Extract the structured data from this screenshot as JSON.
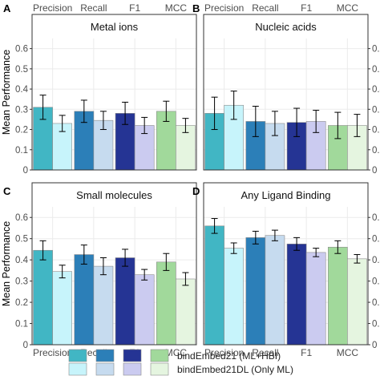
{
  "chart_data": {
    "type": "bar",
    "ylabel": "Mean Performance",
    "ylim": [
      0,
      0.65
    ],
    "yticks": [
      0,
      0.1,
      0.2,
      0.3,
      0.4,
      0.5,
      0.6
    ],
    "ytick_labels": [
      "0",
      "0.1",
      "0.2",
      "0.3",
      "0.4",
      "0.5",
      "0.6"
    ],
    "categories": [
      "Precision",
      "Recall",
      "F1",
      "MCC"
    ],
    "grid": true,
    "legend_position": "bottom",
    "legend": {
      "series": [
        {
          "name": "bindEmbed21 (ML+HBI)",
          "colors": [
            "#41b6c4",
            "#2c7fb8",
            "#253494",
            "#a1d99b"
          ]
        },
        {
          "name": "bindEmbed21DL (Only ML)",
          "colors": [
            "#c7f4fb",
            "#c6dbef",
            "#cbcbf0",
            "#e5f5e0"
          ]
        }
      ]
    },
    "panels": [
      {
        "letter": "A",
        "title": "Metal ions",
        "series": [
          {
            "name": "bindEmbed21 (ML+HBI)",
            "values": [
              0.31,
              0.29,
              0.28,
              0.29
            ],
            "errors": [
              0.06,
              0.055,
              0.055,
              0.05
            ]
          },
          {
            "name": "bindEmbed21DL (Only ML)",
            "values": [
              0.23,
              0.245,
              0.22,
              0.22
            ],
            "errors": [
              0.04,
              0.045,
              0.04,
              0.035
            ]
          }
        ]
      },
      {
        "letter": "B",
        "title": "Nucleic acids",
        "series": [
          {
            "name": "bindEmbed21 (ML+HBI)",
            "values": [
              0.28,
              0.24,
              0.235,
              0.22
            ],
            "errors": [
              0.08,
              0.075,
              0.07,
              0.065
            ]
          },
          {
            "name": "bindEmbed21DL (Only ML)",
            "values": [
              0.32,
              0.23,
              0.24,
              0.22
            ],
            "errors": [
              0.07,
              0.06,
              0.055,
              0.055
            ]
          }
        ]
      },
      {
        "letter": "C",
        "title": "Small molecules",
        "series": [
          {
            "name": "bindEmbed21 (ML+HBI)",
            "values": [
              0.445,
              0.425,
              0.41,
              0.39
            ],
            "errors": [
              0.045,
              0.045,
              0.04,
              0.04
            ]
          },
          {
            "name": "bindEmbed21DL (Only ML)",
            "values": [
              0.345,
              0.37,
              0.33,
              0.31
            ],
            "errors": [
              0.03,
              0.04,
              0.025,
              0.03
            ]
          }
        ]
      },
      {
        "letter": "D",
        "title": "Any Ligand Binding",
        "series": [
          {
            "name": "bindEmbed21 (ML+HBI)",
            "values": [
              0.56,
              0.505,
              0.475,
              0.46
            ],
            "errors": [
              0.035,
              0.03,
              0.03,
              0.03
            ]
          },
          {
            "name": "bindEmbed21DL (Only ML)",
            "values": [
              0.455,
              0.515,
              0.435,
              0.405
            ],
            "errors": [
              0.025,
              0.025,
              0.02,
              0.02
            ]
          }
        ]
      }
    ]
  }
}
